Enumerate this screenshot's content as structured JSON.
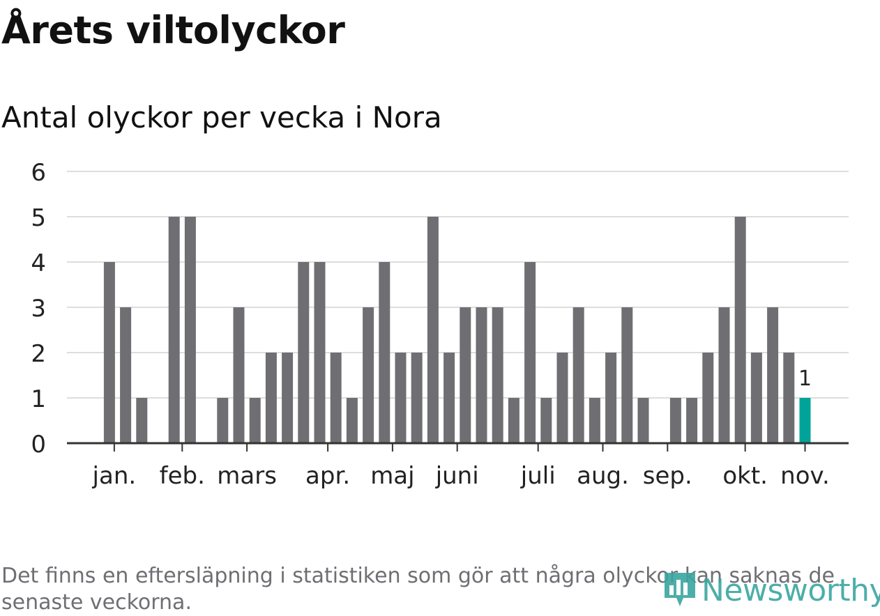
{
  "header": {
    "title": "Årets viltolyckor",
    "subtitle": "Antal olyckor per vecka i Nora"
  },
  "footer": {
    "note": "Det finns en eftersläpning i statistiken som gör att några olyckor kan saknas de senaste veckorna.",
    "brand": "Newsworthy"
  },
  "colors": {
    "bar": "#6f6e73",
    "highlight": "#00a39a",
    "grid": "#dddddd",
    "axis": "#333333"
  },
  "chart_data": {
    "type": "bar",
    "title": "",
    "xlabel": "",
    "ylabel": "",
    "ylim": [
      0,
      6
    ],
    "yticks": [
      0,
      1,
      2,
      3,
      4,
      5,
      6
    ],
    "grid": true,
    "values": [
      0,
      0,
      4,
      3,
      1,
      0,
      5,
      5,
      0,
      1,
      3,
      1,
      2,
      2,
      4,
      4,
      2,
      1,
      3,
      4,
      2,
      2,
      5,
      2,
      3,
      3,
      3,
      1,
      4,
      1,
      2,
      3,
      1,
      2,
      3,
      1,
      0,
      1,
      1,
      2,
      3,
      5,
      2,
      3,
      2,
      1
    ],
    "highlight_index": 45,
    "highlight_label": "1",
    "month_labels": [
      {
        "label": "jan.",
        "bar": 2.3
      },
      {
        "label": "feb.",
        "bar": 6.5
      },
      {
        "label": "mars",
        "bar": 10.5
      },
      {
        "label": "apr.",
        "bar": 15.5
      },
      {
        "label": "maj",
        "bar": 19.5
      },
      {
        "label": "juni",
        "bar": 23.5
      },
      {
        "label": "juli",
        "bar": 28.5
      },
      {
        "label": "aug.",
        "bar": 32.5
      },
      {
        "label": "sep.",
        "bar": 36.5
      },
      {
        "label": "okt.",
        "bar": 41.3
      },
      {
        "label": "nov.",
        "bar": 45
      }
    ]
  }
}
